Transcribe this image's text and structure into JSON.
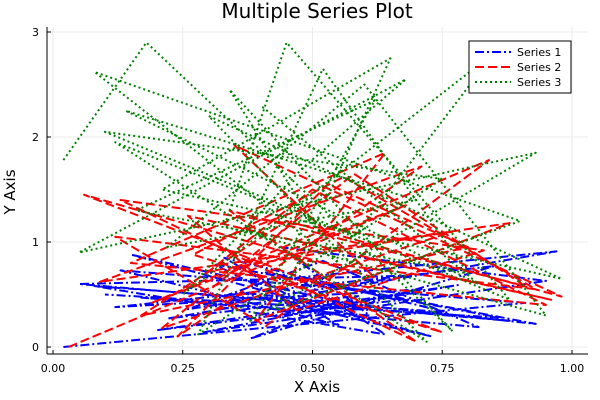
{
  "chart_data": {
    "type": "line",
    "title": "Multiple Series Plot",
    "xlabel": "X Axis",
    "ylabel": "Y Axis",
    "xlim": [
      0,
      1
    ],
    "ylim": [
      0,
      3
    ],
    "x_ticks": [
      0.0,
      0.25,
      0.5,
      0.75,
      1.0
    ],
    "x_tick_labels": [
      "0.00",
      "0.25",
      "0.50",
      "0.75",
      "1.00"
    ],
    "y_ticks": [
      0,
      1,
      2,
      3
    ],
    "y_tick_labels": [
      "0",
      "1",
      "2",
      "3"
    ],
    "grid": true,
    "legend_position": "top-right",
    "series": [
      {
        "name": "Series 1",
        "color": "#0000ff",
        "style": "dashdot",
        "x": [
          0.02,
          0.91,
          0.13,
          0.55,
          0.33,
          0.76,
          0.08,
          0.64,
          0.47,
          0.97,
          0.22,
          0.59,
          0.38,
          0.85,
          0.12,
          0.71,
          0.29,
          0.95,
          0.44,
          0.61,
          0.17,
          0.82,
          0.52,
          0.26,
          0.69,
          0.05,
          0.88,
          0.36,
          0.73,
          0.15,
          0.57,
          0.93,
          0.41,
          0.67,
          0.2,
          0.78,
          0.49,
          0.31,
          0.86,
          0.1
        ],
        "y": [
          0.0,
          0.42,
          0.73,
          0.21,
          0.85,
          0.33,
          0.58,
          0.12,
          0.66,
          0.91,
          0.27,
          0.49,
          0.08,
          0.77,
          0.38,
          0.55,
          0.14,
          0.63,
          0.95,
          0.3,
          0.47,
          0.19,
          0.82,
          0.36,
          0.68,
          0.6,
          0.25,
          0.52,
          0.1,
          0.88,
          0.41,
          0.22,
          0.71,
          0.45,
          0.16,
          0.59,
          0.34,
          0.79,
          0.28,
          0.5
        ]
      },
      {
        "name": "Series 2",
        "color": "#ff0000",
        "style": "dash",
        "x": [
          0.03,
          0.68,
          0.19,
          0.84,
          0.41,
          0.12,
          0.93,
          0.56,
          0.27,
          0.75,
          0.06,
          0.62,
          0.35,
          0.98,
          0.45,
          0.17,
          0.8,
          0.53,
          0.24,
          0.71,
          0.09,
          0.88,
          0.39,
          0.64,
          0.15,
          0.95,
          0.5,
          0.3,
          0.77,
          0.21,
          0.58,
          0.91,
          0.34,
          0.7,
          0.13,
          0.83,
          0.47,
          0.26,
          0.96,
          0.6
        ],
        "y": [
          0.0,
          1.35,
          0.42,
          1.78,
          0.2,
          1.05,
          0.55,
          1.62,
          0.88,
          0.14,
          1.45,
          0.66,
          1.92,
          0.48,
          1.2,
          0.3,
          0.95,
          1.55,
          0.1,
          1.72,
          0.62,
          1.18,
          0.25,
          1.85,
          0.8,
          0.4,
          1.5,
          0.72,
          1.1,
          0.18,
          1.65,
          0.58,
          1.3,
          0.05,
          1.4,
          0.92,
          0.35,
          1.25,
          0.45,
          0.85
        ]
      },
      {
        "name": "Series 3",
        "color": "#008000",
        "style": "dot",
        "x": [
          0.02,
          0.18,
          0.77,
          0.34,
          0.55,
          0.08,
          0.9,
          0.43,
          0.65,
          0.21,
          0.98,
          0.3,
          0.72,
          0.12,
          0.58,
          0.85,
          0.25,
          0.48,
          0.68,
          0.05,
          0.93,
          0.38,
          0.62,
          0.16,
          0.8,
          0.52,
          0.28,
          0.75,
          0.1,
          0.88,
          0.45,
          0.33,
          0.95,
          0.6,
          0.22,
          0.7,
          0.14,
          0.82,
          0.5,
          0.4
        ],
        "y": [
          1.78,
          2.9,
          0.15,
          2.45,
          0.8,
          2.62,
          1.2,
          0.35,
          2.75,
          1.5,
          0.65,
          2.2,
          0.05,
          1.95,
          1.05,
          2.8,
          0.5,
          1.7,
          2.55,
          0.9,
          1.85,
          0.25,
          2.35,
          1.3,
          0.7,
          2.65,
          0.12,
          1.6,
          2.05,
          0.45,
          2.9,
          1.15,
          0.3,
          2.5,
          0.95,
          1.4,
          2.25,
          0.6,
          1.9,
          2.3
        ]
      }
    ]
  }
}
